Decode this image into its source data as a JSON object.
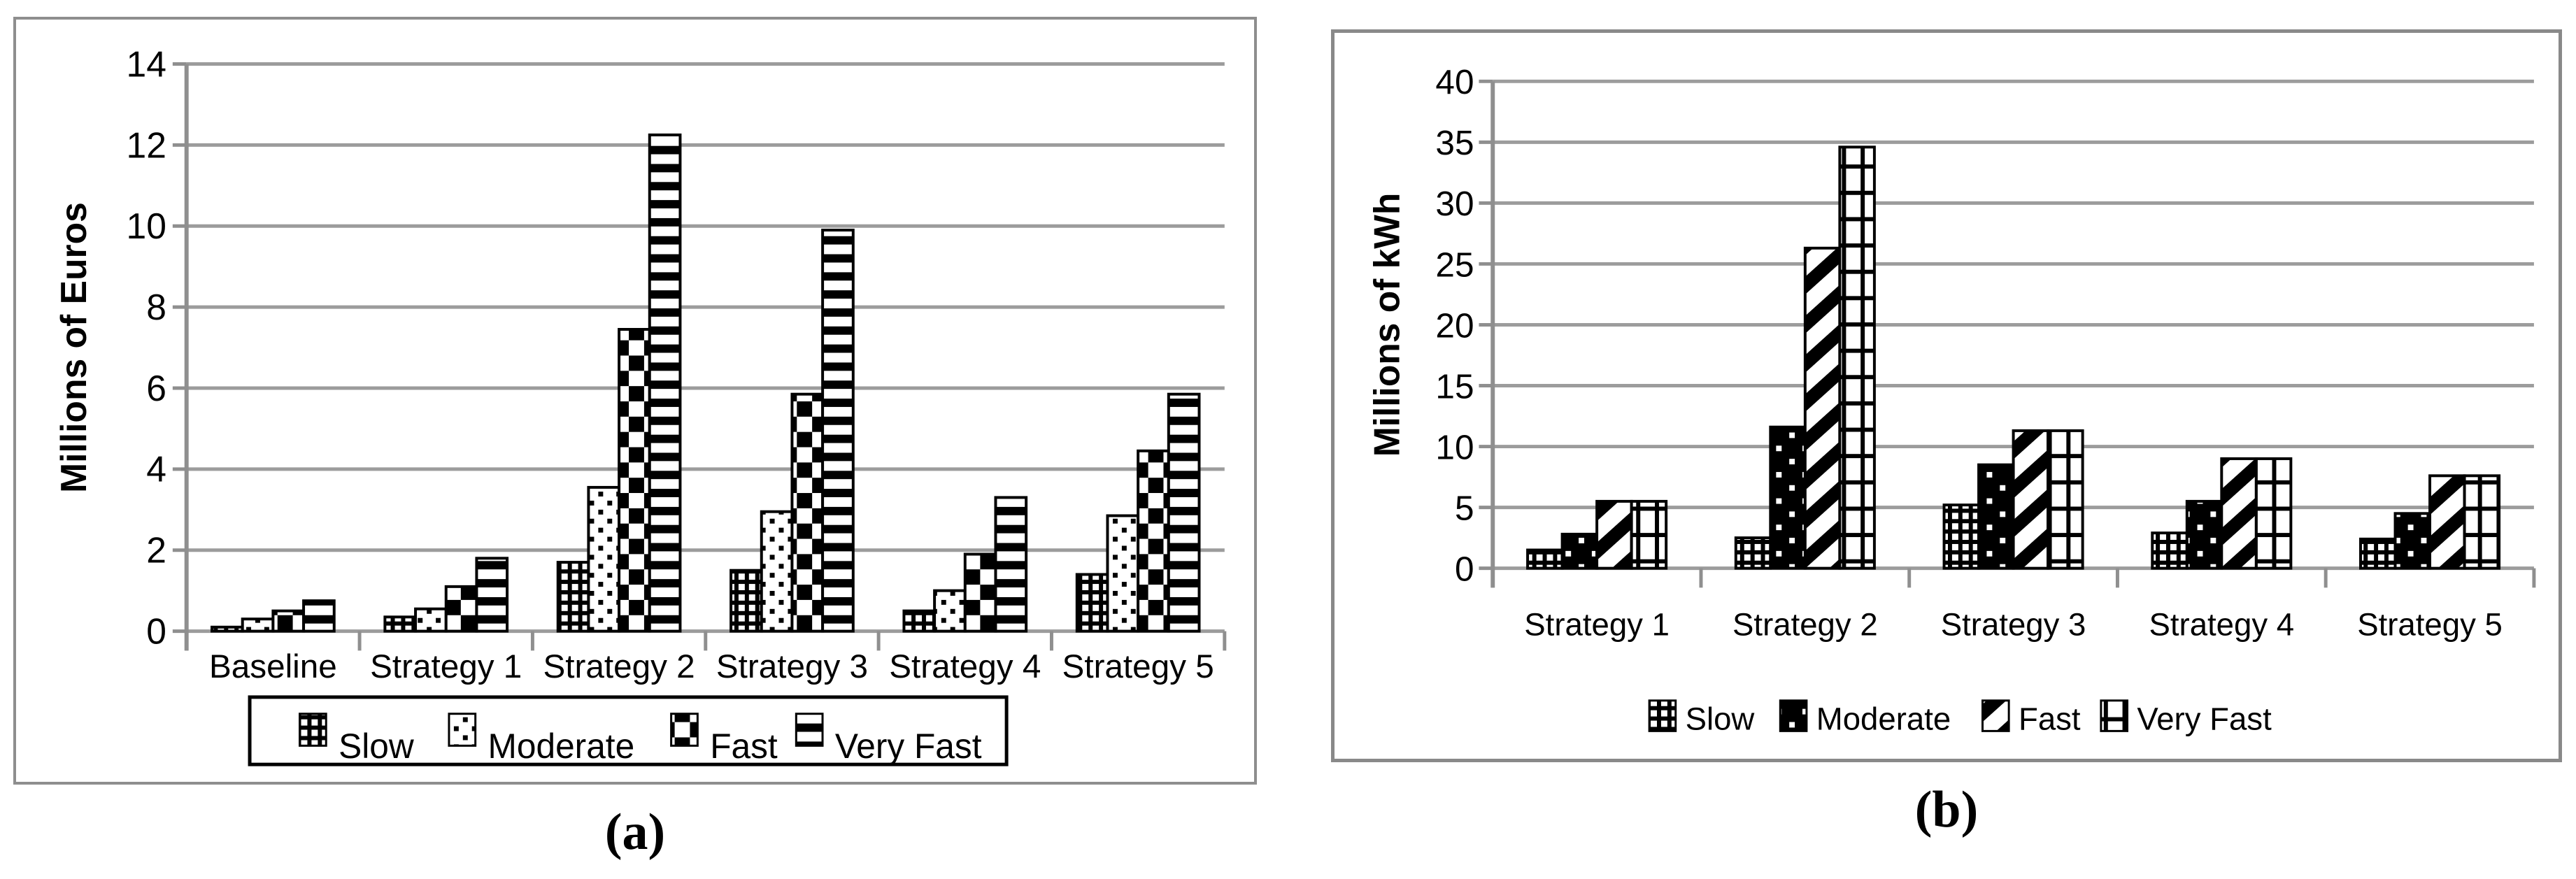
{
  "colors": {
    "bar_fill_fg": "#000000",
    "bar_outline": "#000000",
    "gridline": "#9c9c9c",
    "axis": "#8f8f8f",
    "panel_border": "#8e8e8e",
    "background": "#ffffff",
    "text": "#000000"
  },
  "chart_data": [
    {
      "id": "a",
      "type": "bar",
      "caption": "(a)",
      "title": "",
      "xlabel": "",
      "ylabel": "Millions of Euros",
      "ylim": [
        0,
        14
      ],
      "y_ticks": [
        0,
        2,
        4,
        6,
        8,
        10,
        12,
        14
      ],
      "grid": true,
      "legend_position": "bottom",
      "legend_border": true,
      "categories": [
        "Baseline",
        "Strategy 1",
        "Strategy 2",
        "Strategy 3",
        "Strategy 4",
        "Strategy 5"
      ],
      "series": [
        {
          "name": "Slow",
          "pattern": "checker-small",
          "values": [
            0.1,
            0.35,
            1.7,
            1.5,
            0.5,
            1.4
          ]
        },
        {
          "name": "Moderate",
          "pattern": "dots-on-white",
          "values": [
            0.3,
            0.55,
            3.55,
            2.95,
            1.0,
            2.85
          ]
        },
        {
          "name": "Fast",
          "pattern": "checker-large",
          "values": [
            0.5,
            1.1,
            7.45,
            5.85,
            1.9,
            4.45
          ]
        },
        {
          "name": "Very Fast",
          "pattern": "h-lines",
          "values": [
            0.75,
            1.8,
            12.25,
            9.9,
            3.3,
            5.85
          ]
        }
      ]
    },
    {
      "id": "b",
      "type": "bar",
      "caption": "(b)",
      "title": "",
      "xlabel": "",
      "ylabel": "Millions of kWh",
      "ylim": [
        0,
        40
      ],
      "y_ticks": [
        0,
        5,
        10,
        15,
        20,
        25,
        30,
        35,
        40
      ],
      "grid": true,
      "legend_position": "bottom",
      "legend_border": false,
      "categories": [
        "Strategy 1",
        "Strategy 2",
        "Strategy 3",
        "Strategy 4",
        "Strategy 5"
      ],
      "series": [
        {
          "name": "Slow",
          "pattern": "checker-small",
          "values": [
            1.5,
            2.5,
            5.2,
            2.9,
            2.4
          ]
        },
        {
          "name": "Moderate",
          "pattern": "dots-on-black",
          "values": [
            2.8,
            11.6,
            8.5,
            5.5,
            4.5
          ]
        },
        {
          "name": "Fast",
          "pattern": "diag-stripes",
          "values": [
            5.5,
            26.3,
            11.3,
            9.0,
            7.6
          ]
        },
        {
          "name": "Very Fast",
          "pattern": "grid-tiles",
          "values": [
            5.5,
            34.6,
            11.3,
            9.0,
            7.6
          ]
        }
      ]
    }
  ]
}
